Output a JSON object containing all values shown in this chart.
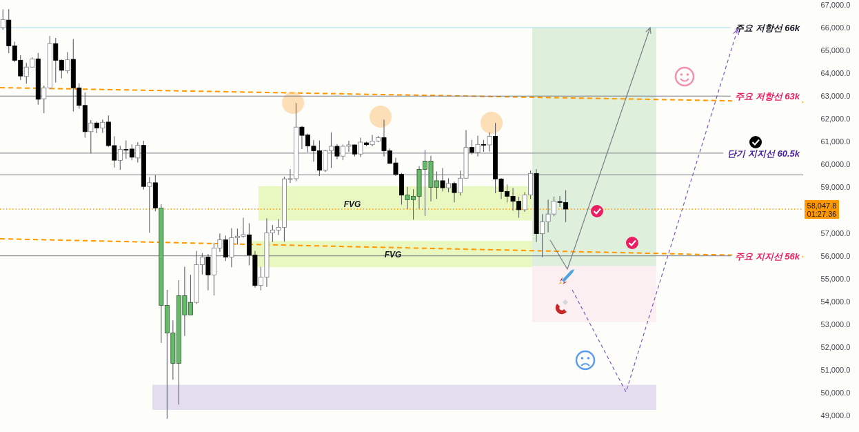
{
  "chart_data": {
    "type": "candlestick",
    "categories": [
      null,
      null,
      null,
      null,
      null,
      null,
      null,
      null,
      null,
      null,
      null,
      null,
      null,
      null,
      null,
      null,
      null,
      null,
      null,
      null,
      null,
      null,
      null,
      null,
      null,
      null,
      null,
      null,
      null,
      null,
      null,
      null,
      null,
      null,
      null,
      null,
      null,
      null,
      null,
      null,
      null,
      null,
      null,
      null,
      null,
      null,
      null,
      null,
      null,
      null,
      null,
      null,
      null,
      null,
      null,
      null,
      null,
      null,
      null,
      null,
      null,
      null,
      null,
      null,
      null,
      null,
      null,
      null,
      null,
      null,
      null,
      null,
      null,
      null,
      null,
      null,
      null,
      null,
      null,
      null,
      null,
      null,
      null,
      null,
      null,
      null,
      null,
      null,
      null,
      null,
      null,
      null,
      null,
      null,
      null,
      null,
      null,
      null,
      null,
      null,
      null,
      null,
      null,
      null,
      null,
      null,
      null,
      null,
      null,
      null,
      null,
      null,
      null,
      null,
      null,
      null,
      null,
      null,
      null,
      null,
      null,
      null,
      null,
      null,
      null,
      null,
      null,
      null,
      null,
      null,
      null,
      null,
      null,
      null,
      null,
      null,
      null
    ],
    "ohlc": [
      [
        66000,
        66800,
        65900,
        66350
      ],
      [
        66330,
        66810,
        64880,
        65200
      ],
      [
        65200,
        65380,
        64490,
        64570
      ],
      [
        64570,
        64790,
        63700,
        63880
      ],
      [
        63860,
        64450,
        63540,
        64270
      ],
      [
        64270,
        64690,
        64270,
        64630
      ],
      [
        64630,
        64890,
        62620,
        62860
      ],
      [
        62880,
        63460,
        62250,
        63360
      ],
      [
        63360,
        65630,
        63300,
        65300
      ],
      [
        65300,
        65550,
        63600,
        64570
      ],
      [
        64570,
        64610,
        63780,
        64130
      ],
      [
        64110,
        64930,
        64000,
        64590
      ],
      [
        64610,
        65500,
        62330,
        63360
      ],
      [
        63360,
        63560,
        62450,
        62590
      ],
      [
        62590,
        63160,
        61180,
        61440
      ],
      [
        61440,
        61950,
        60480,
        61820
      ],
      [
        61820,
        61890,
        61370,
        61600
      ],
      [
        61600,
        61970,
        61390,
        61850
      ],
      [
        61860,
        62150,
        60780,
        60830
      ],
      [
        60830,
        61240,
        59870,
        60190
      ],
      [
        60180,
        60820,
        59770,
        60660
      ],
      [
        60660,
        61060,
        60250,
        60650
      ],
      [
        60680,
        60880,
        60190,
        60320
      ],
      [
        60290,
        60980,
        60090,
        60840
      ],
      [
        60840,
        61040,
        58900,
        59040
      ],
      [
        59040,
        59450,
        57010,
        59200
      ],
      [
        59200,
        59550,
        57950,
        58100
      ],
      [
        58090,
        58260,
        52190,
        53830
      ],
      [
        53830,
        54510,
        48860,
        52620
      ],
      [
        52620,
        53170,
        50570,
        51290
      ],
      [
        51290,
        54930,
        49480,
        54250
      ],
      [
        54250,
        55520,
        52490,
        53410
      ],
      [
        53410,
        55170,
        53410,
        53960
      ],
      [
        53960,
        56220,
        53900,
        55610
      ],
      [
        55610,
        56120,
        55180,
        55950
      ],
      [
        55950,
        56080,
        54490,
        55160
      ],
      [
        55160,
        56570,
        54260,
        56340
      ],
      [
        56340,
        56980,
        56170,
        56700
      ],
      [
        56700,
        56890,
        55770,
        55940
      ],
      [
        55940,
        57210,
        55500,
        56790
      ],
      [
        56790,
        57190,
        56500,
        56860
      ],
      [
        56860,
        57670,
        56800,
        56930
      ],
      [
        56920,
        57430,
        55580,
        56030
      ],
      [
        56030,
        56220,
        54610,
        54700
      ],
      [
        54700,
        55520,
        54490,
        55060
      ],
      [
        55060,
        57650,
        54640,
        57010
      ],
      [
        57010,
        57350,
        56600,
        57130
      ],
      [
        57130,
        57610,
        56910,
        57250
      ],
      [
        57250,
        59470,
        56620,
        59370
      ],
      [
        59370,
        59800,
        59200,
        59380
      ],
      [
        59380,
        62700,
        59270,
        61640
      ],
      [
        61640,
        61690,
        60680,
        61280
      ],
      [
        61300,
        61360,
        60540,
        60810
      ],
      [
        60810,
        61080,
        60130,
        60600
      ],
      [
        60600,
        61060,
        59500,
        59750
      ],
      [
        59750,
        60650,
        59670,
        60610
      ],
      [
        60610,
        61410,
        59850,
        60800
      ],
      [
        60800,
        60900,
        60230,
        60370
      ],
      [
        60370,
        60880,
        60190,
        60800
      ],
      [
        60800,
        61040,
        60560,
        60860
      ],
      [
        60860,
        60880,
        60350,
        60460
      ],
      [
        60460,
        61180,
        60330,
        60980
      ],
      [
        60950,
        61000,
        60800,
        60870
      ],
      [
        60870,
        61300,
        60800,
        61030
      ],
      [
        61030,
        61260,
        60980,
        61180
      ],
      [
        61180,
        61970,
        60350,
        60600
      ],
      [
        60600,
        60700,
        60030,
        60050
      ],
      [
        60070,
        60300,
        59500,
        59570
      ],
      [
        59570,
        59630,
        58240,
        58660
      ],
      [
        58660,
        59020,
        58040,
        58460
      ],
      [
        58460,
        58920,
        57580,
        58610
      ],
      [
        58610,
        59930,
        58060,
        59790
      ],
      [
        59790,
        60640,
        57750,
        60150
      ],
      [
        60150,
        60380,
        58390,
        59000
      ],
      [
        59000,
        59700,
        58490,
        59290
      ],
      [
        59290,
        59850,
        58820,
        58980
      ],
      [
        58980,
        59400,
        58790,
        59170
      ],
      [
        59170,
        59250,
        58340,
        58770
      ],
      [
        58770,
        59730,
        58640,
        59400
      ],
      [
        59400,
        61510,
        59400,
        60750
      ],
      [
        60750,
        61080,
        60440,
        60530
      ],
      [
        60530,
        61260,
        60350,
        60880
      ],
      [
        60880,
        61080,
        60560,
        60870
      ],
      [
        60860,
        61410,
        60570,
        61240
      ],
      [
        61240,
        61820,
        58740,
        59370
      ],
      [
        59370,
        59400,
        58490,
        58820
      ],
      [
        58820,
        59130,
        58340,
        58610
      ],
      [
        58610,
        58980,
        57980,
        58390
      ],
      [
        58390,
        58590,
        57670,
        58020
      ],
      [
        58020,
        58790,
        57930,
        58670
      ],
      [
        58670,
        59730,
        58490,
        59610
      ],
      [
        59610,
        59800,
        56600,
        56970
      ],
      [
        56970,
        57830,
        55940,
        57490
      ],
      [
        57490,
        58460,
        57030,
        57830
      ],
      [
        57830,
        58590,
        57730,
        58400
      ],
      [
        58380,
        58620,
        58140,
        58340
      ],
      [
        58340,
        58880,
        57480,
        58047.8
      ],
      null,
      null,
      null,
      null,
      null,
      null,
      null,
      null,
      null,
      null,
      null,
      null,
      null,
      null,
      null,
      null,
      null,
      null,
      null,
      null,
      null,
      null,
      null,
      null,
      null,
      null,
      null,
      null,
      null,
      null,
      null,
      null,
      null,
      null,
      null,
      null,
      null,
      null,
      null,
      null
    ],
    "colors": [
      "#ffffff",
      "#000000",
      "#000000",
      "#000000",
      "#ffffff",
      "#ffffff",
      "#000000",
      "#ffffff",
      "#ffffff",
      "#000000",
      "#000000",
      "#ffffff",
      "#000000",
      "#000000",
      "#000000",
      "#ffffff",
      "#000000",
      "#ffffff",
      "#000000",
      "#000000",
      "#ffffff",
      "#000000",
      "#000000",
      "#ffffff",
      "#000000",
      "#ffffff",
      "#000000",
      "#66bb6a",
      "#66bb6a",
      "#66bb6a",
      "#66bb6a",
      "#66bb6a",
      "#66bb6a",
      "#ffffff",
      "#ffffff",
      "#000000",
      "#ffffff",
      "#ffffff",
      "#000000",
      "#ffffff",
      "#ffffff",
      "#ffffff",
      "#000000",
      "#000000",
      "#ffffff",
      "#ffffff",
      "#ffffff",
      "#ffffff",
      "#ffffff",
      "#ffffff",
      "#ffffff",
      "#000000",
      "#000000",
      "#000000",
      "#000000",
      "#ffffff",
      "#ffffff",
      "#000000",
      "#ffffff",
      "#ffffff",
      "#000000",
      "#ffffff",
      "#000000",
      "#ffffff",
      "#ffffff",
      "#000000",
      "#000000",
      "#000000",
      "#000000",
      "#66bb6a",
      "#66bb6a",
      "#66bb6a",
      "#66bb6a",
      "#66bb6a",
      "#66bb6a",
      "#000000",
      "#ffffff",
      "#000000",
      "#ffffff",
      "#ffffff",
      "#000000",
      "#ffffff",
      "#000000",
      "#ffffff",
      "#000000",
      "#000000",
      "#000000",
      "#000000",
      "#000000",
      "#ffffff",
      "#ffffff",
      "#000000",
      "#ffffff",
      "#ffffff",
      "#ffffff",
      "#000000",
      "#000000",
      null,
      null,
      null,
      null,
      null,
      null,
      null,
      null,
      null,
      null,
      null,
      null,
      null,
      null,
      null,
      null,
      null,
      null,
      null,
      null,
      null,
      null,
      null,
      null,
      null,
      null,
      null,
      null,
      null,
      null,
      null,
      null,
      null,
      null,
      null,
      null,
      null,
      null,
      null,
      null
    ],
    "bands": [
      {
        "axis": "y",
        "from": 57550,
        "to": 59050,
        "label": "FVG",
        "color": "#e8f8c0"
      },
      {
        "axis": "y",
        "from": 55500,
        "to": 56650,
        "label": "FVG",
        "color": "#e8f8c0"
      },
      {
        "axis": "y",
        "from": 55550,
        "to": 66000,
        "color": "#deefdc"
      },
      {
        "axis": "y",
        "from": 53100,
        "to": 55550,
        "color": "#fbeff2"
      },
      {
        "axis": "y",
        "from": 49250,
        "to": 50350,
        "color": "#e4ddef"
      }
    ],
    "ref_lines": [
      {
        "axis": "y",
        "value": 66000,
        "label": "주요 저항선 66k",
        "color": "#a6dce8"
      },
      {
        "axis": "y",
        "value": 63000,
        "label": "주요 저항선 63k",
        "color": "#787b86"
      },
      {
        "axis": "y",
        "value": 60500,
        "label": "단기 지지선 60.5k",
        "color": "#787b86"
      },
      {
        "axis": "y",
        "value": 59550,
        "color": "#787b86"
      },
      {
        "axis": "y",
        "value": 56000,
        "label": "주요 지지선 56k",
        "color": "#787b86"
      },
      {
        "axis": "y",
        "value": 58047.8,
        "label": "58,047.8",
        "color": "#ff9800",
        "line_style": "dotted"
      }
    ],
    "annotations": [
      "01:27:36"
    ],
    "ylim": [
      48280,
      67210
    ],
    "yticks": [
      {
        "value": 67000,
        "label": "67,000.0"
      },
      {
        "value": 66000,
        "label": "66,000.0"
      },
      {
        "value": 65000,
        "label": "65,000.0"
      },
      {
        "value": 64000,
        "label": "64,000.0"
      },
      {
        "value": 63000,
        "label": "63,000.0"
      },
      {
        "value": 62000,
        "label": "62,000.0"
      },
      {
        "value": 61000,
        "label": "61,000.0"
      },
      {
        "value": 60000,
        "label": "60,000.0"
      },
      {
        "value": 59000,
        "label": "59,000.0"
      },
      {
        "value": 57000,
        "label": "57,000.0"
      },
      {
        "value": 56000,
        "label": "56,000.0"
      },
      {
        "value": 55000,
        "label": "55,000.0"
      },
      {
        "value": 54000,
        "label": "54,000.0"
      },
      {
        "value": 53000,
        "label": "53,000.0"
      },
      {
        "value": 52000,
        "label": "52,000.0"
      },
      {
        "value": 51000,
        "label": "51,000.0"
      },
      {
        "value": 50000,
        "label": "50,000.0"
      },
      {
        "value": 49000,
        "label": "49,000.0"
      }
    ],
    "tick_labels": "y",
    "grid": false
  }
}
